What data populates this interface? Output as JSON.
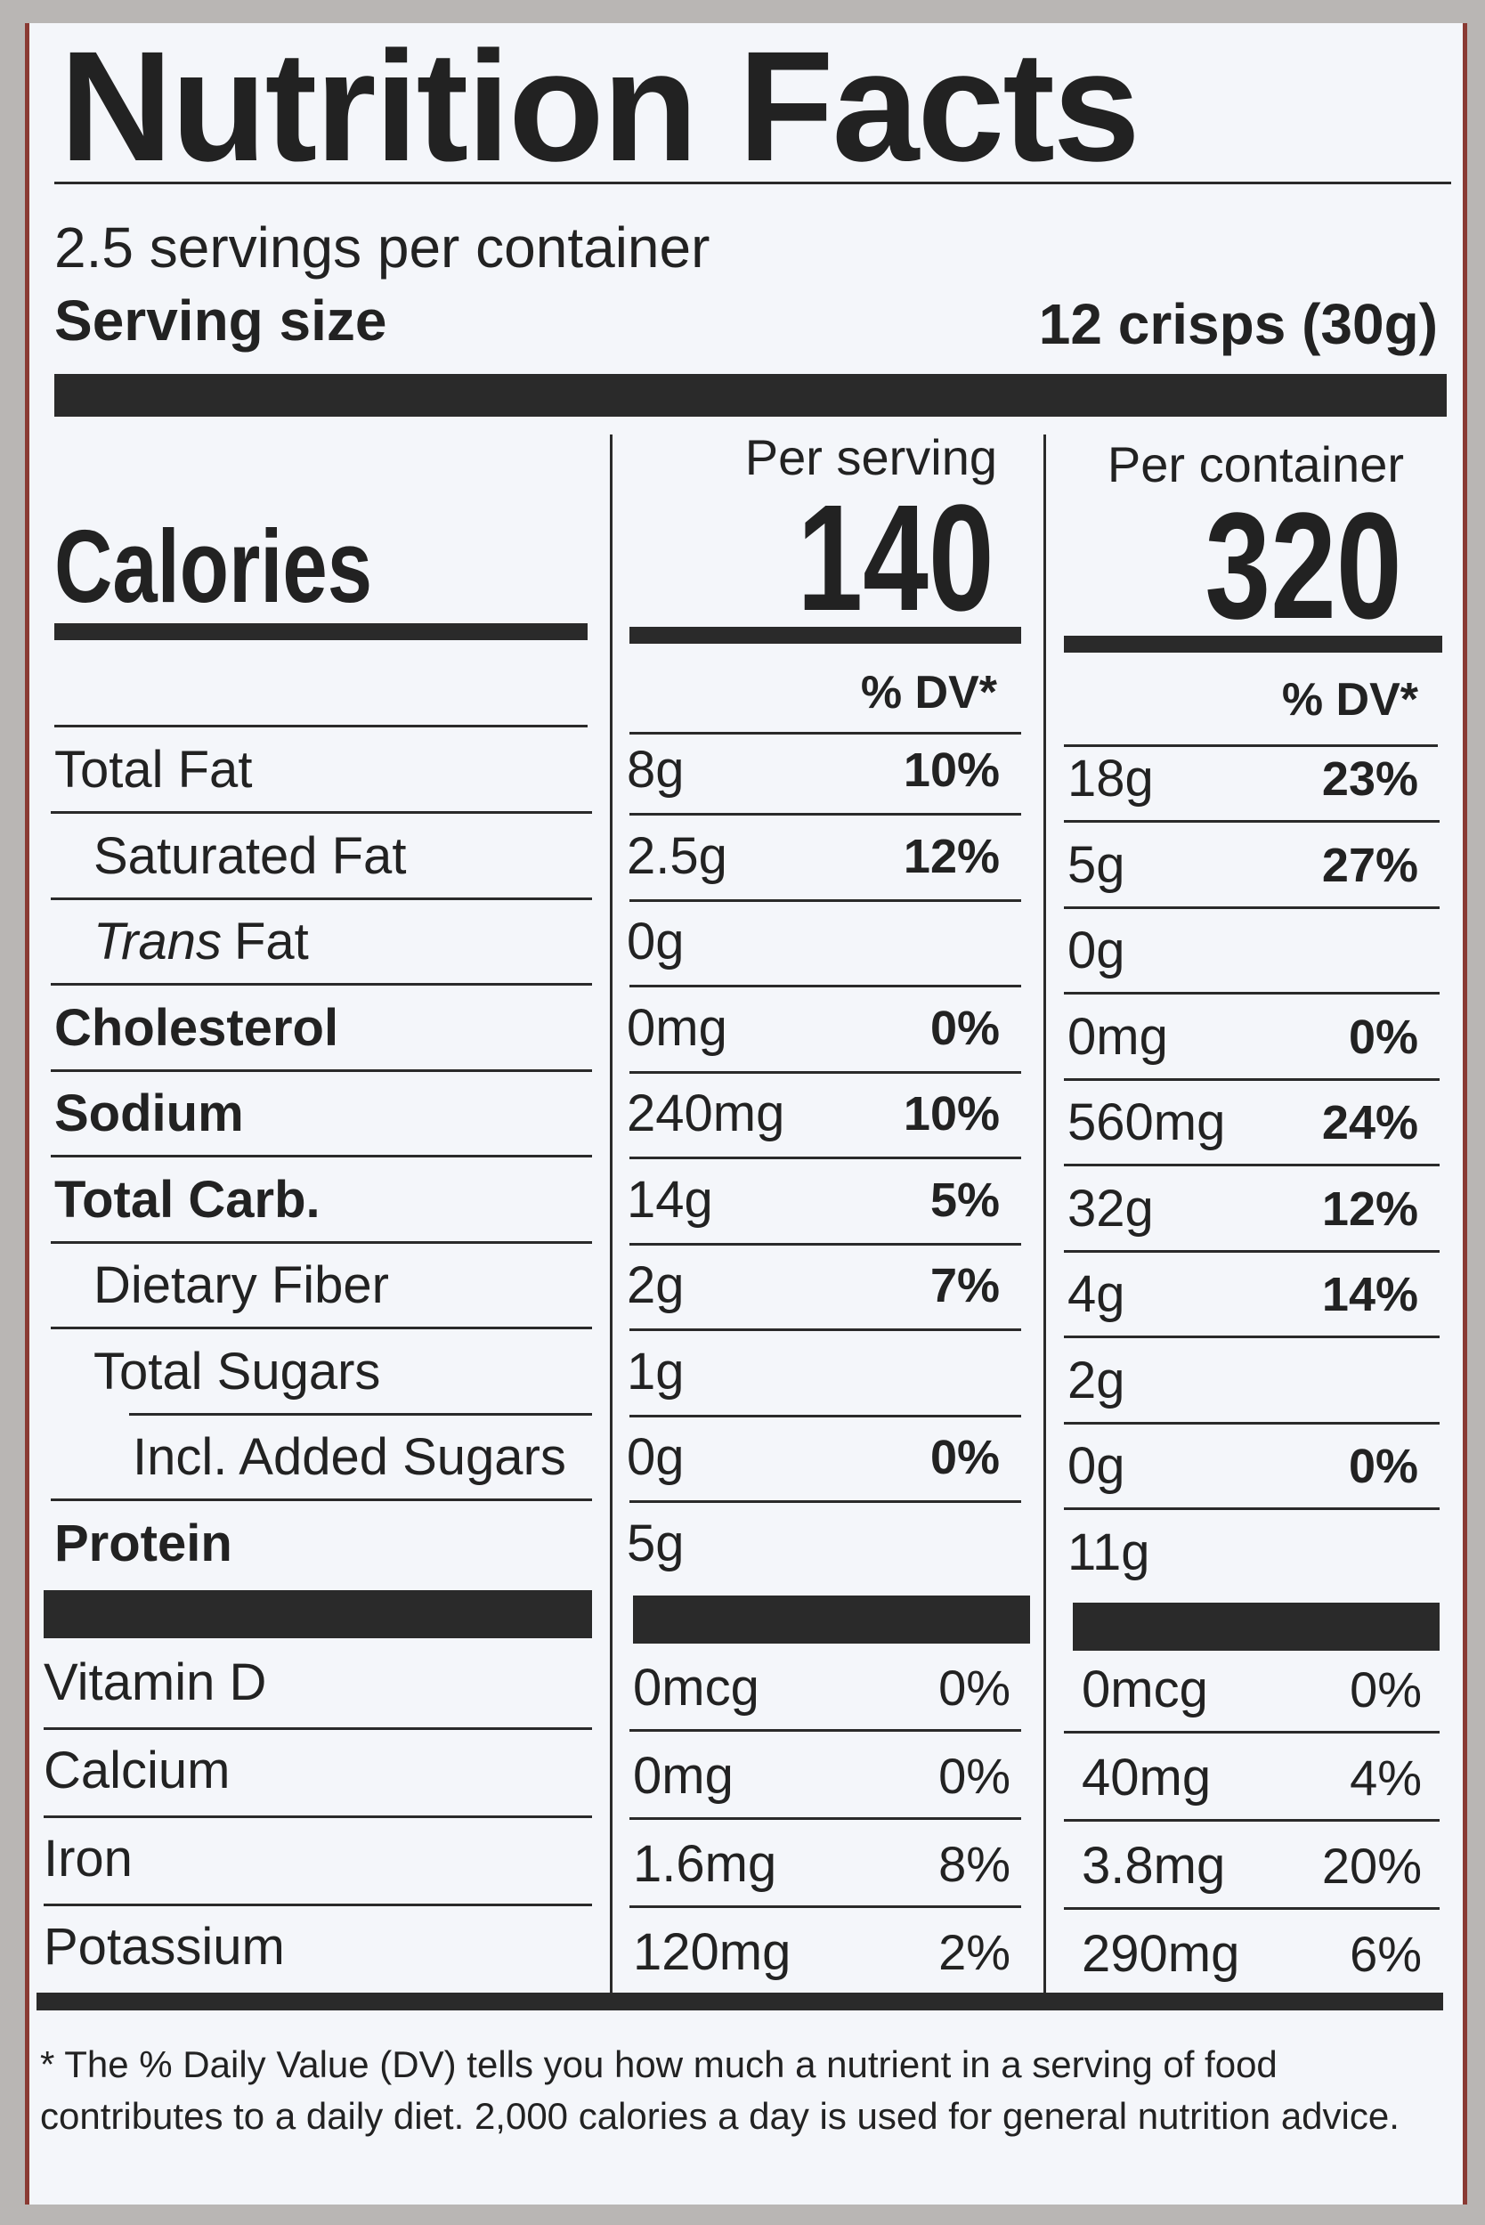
{
  "header": {
    "title": "Nutrition Facts",
    "servings": "2.5 servings per container",
    "serving_size_label": "Serving size",
    "serving_size": "12 crisps (30g)"
  },
  "calories": {
    "label": "Calories",
    "per_serving_label": "Per serving",
    "per_serving": "140",
    "per_container_label": "Per container",
    "per_container": "320",
    "dv_header_serving": "% DV*",
    "dv_header_container": "% DV*"
  },
  "nutrients": [
    {
      "label": "Total Fat",
      "serving": "8g",
      "serving_dv": "10%",
      "container": "18g",
      "container_dv": "23%"
    },
    {
      "label": "Saturated Fat",
      "indent": 1,
      "serving": "2.5g",
      "serving_dv": "12%",
      "container": "5g",
      "container_dv": "27%"
    },
    {
      "label_italic": "Trans",
      "label": "Fat",
      "indent": 1,
      "serving": "0g",
      "container": "0g"
    },
    {
      "label": "Cholesterol",
      "bold": true,
      "serving": "0mg",
      "serving_dv": "0%",
      "container": "0mg",
      "container_dv": "0%"
    },
    {
      "label": "Sodium",
      "bold": true,
      "serving": "240mg",
      "serving_dv": "10%",
      "container": "560mg",
      "container_dv": "24%"
    },
    {
      "label": "Total Carb.",
      "bold": true,
      "serving": "14g",
      "serving_dv": "5%",
      "container": "32g",
      "container_dv": "12%"
    },
    {
      "label": "Dietary Fiber",
      "indent": 1,
      "serving": "2g",
      "serving_dv": "7%",
      "container": "4g",
      "container_dv": "14%"
    },
    {
      "label": "Total Sugars",
      "indent": 1,
      "serving": "1g",
      "container": "2g"
    },
    {
      "label": "Incl. Added Sugars",
      "indent": 2,
      "serving": "0g",
      "serving_dv": "0%",
      "container": "0g",
      "container_dv": "0%"
    },
    {
      "label": "Protein",
      "bold": true,
      "serving": "5g",
      "container": "11g"
    }
  ],
  "vitamins": [
    {
      "label": "Vitamin D",
      "serving": "0mcg",
      "serving_dv": "0%",
      "container": "0mcg",
      "container_dv": "0%"
    },
    {
      "label": "Calcium",
      "serving": "0mg",
      "serving_dv": "0%",
      "container": "40mg",
      "container_dv": "4%"
    },
    {
      "label": "Iron",
      "serving": "1.6mg",
      "serving_dv": "8%",
      "container": "3.8mg",
      "container_dv": "20%"
    },
    {
      "label": "Potassium",
      "serving": "120mg",
      "serving_dv": "2%",
      "container": "290mg",
      "container_dv": "6%"
    }
  ],
  "footnote": "* The % Daily Value (DV) tells you how much a nutrient in a serving of food contributes to a daily diet. 2,000 calories a day is used for general nutrition advice."
}
